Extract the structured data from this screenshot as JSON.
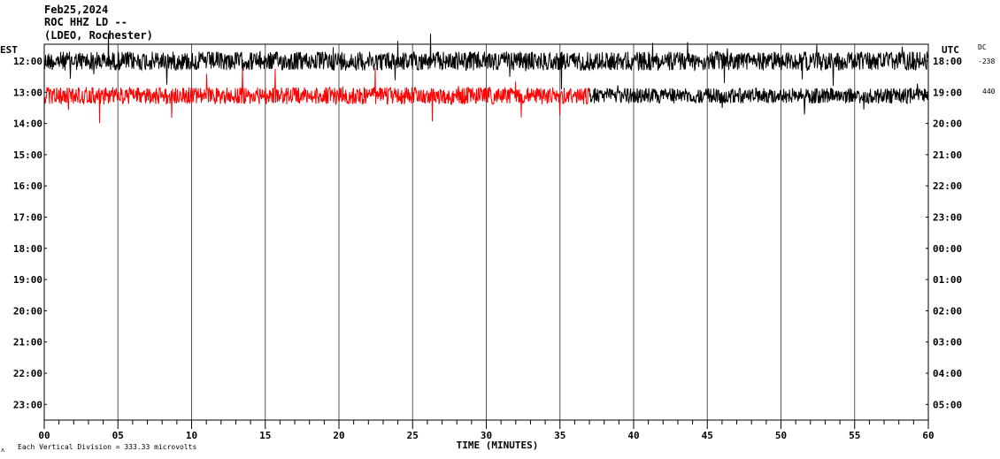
{
  "header": {
    "date": "Feb25,2024",
    "station": "ROC HHZ LD --",
    "network": "(LDEO, Rochester)"
  },
  "chart_data": {
    "type": "line",
    "title": "Feb25,2024",
    "xlabel": "TIME (MINUTES)",
    "left_axis_label": "EST",
    "right_axis_label": "UTC",
    "x_ticks": [
      "00",
      "05",
      "10",
      "15",
      "20",
      "25",
      "30",
      "35",
      "40",
      "45",
      "50",
      "55",
      "60"
    ],
    "xlim": [
      0,
      60
    ],
    "est_hours": [
      "12:00",
      "13:00",
      "14:00",
      "15:00",
      "16:00",
      "17:00",
      "18:00",
      "19:00",
      "20:00",
      "21:00",
      "22:00",
      "23:00"
    ],
    "utc_hours": [
      "18:00",
      "19:00",
      "20:00",
      "21:00",
      "22:00",
      "23:00",
      "00:00",
      "01:00",
      "02:00",
      "03:00",
      "04:00",
      "05:00"
    ],
    "dc_label": "DC",
    "dc_values": [
      "-238",
      "440"
    ],
    "scale_note": "Each Vertical Division =  333.33 microvolts",
    "grid": true,
    "traces": [
      {
        "row": 0,
        "color": "#000000",
        "x_start": 0,
        "x_end": 60,
        "amplitude": 0.55,
        "spike": 1.45
      },
      {
        "row": 1,
        "color": "#ff0000",
        "x_start": 0,
        "x_end": 37,
        "amplitude": 0.5,
        "spike": 1.6
      },
      {
        "row": 1,
        "color": "#000000",
        "x_start": 37,
        "x_end": 60,
        "amplitude": 0.45,
        "spike": 1.1
      }
    ]
  }
}
